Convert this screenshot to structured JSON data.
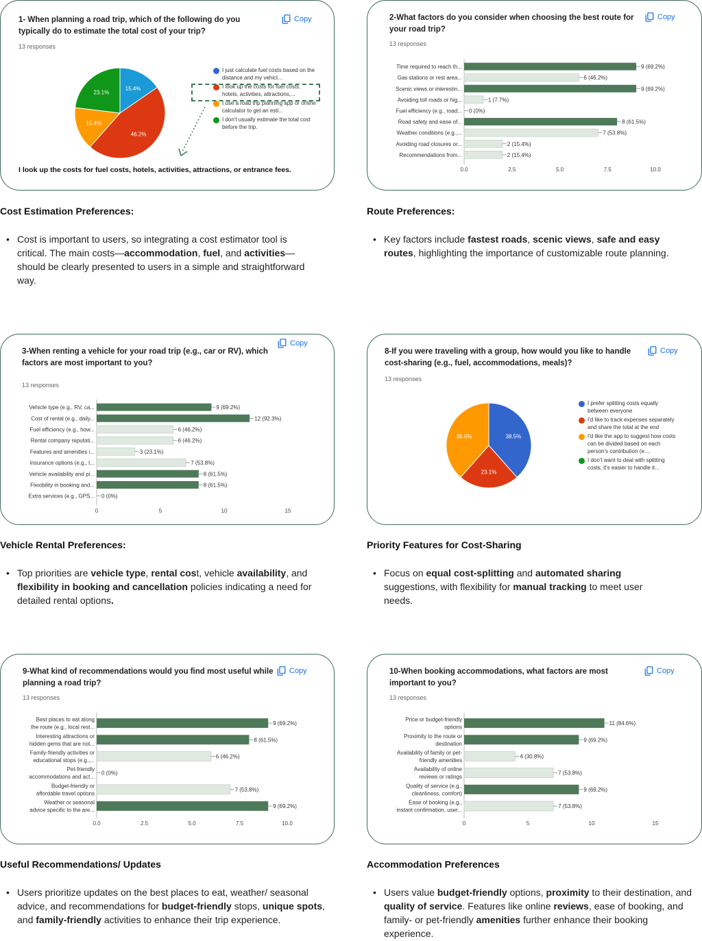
{
  "copy_label": "Copy",
  "responses": "13 responses",
  "colors": {
    "bar_dark": "#4f7a5a",
    "bar_light": "#dfe9e0",
    "border": "#3e6b5f"
  },
  "cards": {
    "c1": {
      "question_l1": "1- When planning a road trip, which of the following do you",
      "question_l2": "typically do to estimate the total cost of your trip?",
      "note": "I look up the costs for fuel costs, hotels, activities, attractions, or entrance fees."
    },
    "c2": {
      "question_l1": "2-What factors do you consider when choosing the best route for",
      "question_l2": "your road trip?"
    },
    "c3": {
      "question_l1": "3-When renting a vehicle for your road trip (e.g., car or RV), which",
      "question_l2": "factors are most important to you?"
    },
    "c4": {
      "question_l1": "8-If you were traveling with a group, how would you like to handle",
      "question_l2": "cost-sharing (e.g., fuel, accommodations, meals)?"
    },
    "c5": {
      "question_l1": "9-What kind of recommendations would you find most useful while",
      "question_l2": "planning a road trip?"
    },
    "c6": {
      "question_l1": "10-When booking accommodations, what factors are most",
      "question_l2": "important to you?"
    }
  },
  "sections": {
    "s1": {
      "heading": "Cost Estimation Preferences:"
    },
    "s2": {
      "heading": "Route Preferences:"
    },
    "s3": {
      "heading": "Vehicle Rental Preferences:"
    },
    "s4": {
      "heading": "Priority Features for Cost-Sharing"
    },
    "s5": {
      "heading": "Useful Recommendations/ Updates"
    },
    "s6": {
      "heading": "Accommodation Preferences"
    }
  },
  "bullets": {
    "s1": [
      {
        "t": "Cost is important to users, so integrating a cost estimator tool is critical. The main costs—"
      },
      {
        "t": "accommodation",
        "b": true
      },
      {
        "t": ", "
      },
      {
        "t": "fuel",
        "b": true
      },
      {
        "t": ", and "
      },
      {
        "t": "activities",
        "b": true
      },
      {
        "t": "—should be clearly presented to users in a simple and straightforward way."
      }
    ],
    "s2": [
      {
        "t": "Key factors include "
      },
      {
        "t": "fastest roads",
        "b": true
      },
      {
        "t": ", "
      },
      {
        "t": "scenic views",
        "b": true
      },
      {
        "t": ", "
      },
      {
        "t": "safe and easy routes",
        "b": true
      },
      {
        "t": ", highlighting the importance of customizable route planning."
      }
    ],
    "s3": [
      {
        "t": "Top priorities are "
      },
      {
        "t": "vehicle type",
        "b": true
      },
      {
        "t": ", "
      },
      {
        "t": "rental cos",
        "b": true
      },
      {
        "t": "t, vehicle "
      },
      {
        "t": "availability",
        "b": true
      },
      {
        "t": ", and "
      },
      {
        "t": "flexibility in booking and cancellation",
        "b": true
      },
      {
        "t": " policies indicating a need for detailed rental options"
      },
      {
        "t": ".",
        "b": true
      }
    ],
    "s4": [
      {
        "t": "Focus on "
      },
      {
        "t": "equal cost-splitting",
        "b": true
      },
      {
        "t": " and "
      },
      {
        "t": "automated sharing",
        "b": true
      },
      {
        "t": " suggestions, with flexibility for "
      },
      {
        "t": "manual tracking",
        "b": true
      },
      {
        "t": " to meet user needs."
      }
    ],
    "s5": [
      {
        "t": "Users prioritize updates on the best places to eat, weather/ seasonal advice, and recommendations for "
      },
      {
        "t": "budget-friendly",
        "b": true
      },
      {
        "t": " stops, "
      },
      {
        "t": "unique spots",
        "b": true
      },
      {
        "t": ", and "
      },
      {
        "t": "family-friendly",
        "b": true
      },
      {
        "t": " activities to enhance their trip experience."
      }
    ],
    "s6": [
      {
        "t": "Users value "
      },
      {
        "t": "budget-friendly",
        "b": true
      },
      {
        "t": " options, "
      },
      {
        "t": "proximity",
        "b": true
      },
      {
        "t": " to their destination, and "
      },
      {
        "t": "quality of service",
        "b": true
      },
      {
        "t": ". Features like online "
      },
      {
        "t": "reviews",
        "b": true
      },
      {
        "t": ", ease of booking, and family- or pet-friendly "
      },
      {
        "t": "amenities",
        "b": true
      },
      {
        "t": " further enhance their booking experience."
      }
    ]
  },
  "chart_data": [
    {
      "type": "pie",
      "id": "c1",
      "slices": [
        {
          "label": "I just calculate fuel costs based on the distance and my vehicl...",
          "value": 15.4,
          "color": "#1a9ad6"
        },
        {
          "label": "I look up the costs for fuel costs, hotels, activities, attractions,...",
          "value": 46.2,
          "color": "#dc3912"
        },
        {
          "label": "I use a road trip planning app or online calculator to get an esti...",
          "value": 15.4,
          "color": "#ff9900"
        },
        {
          "label": "I don't usually estimate the total cost before the trip.",
          "value": 23.1,
          "color": "#109618"
        }
      ],
      "legend_dots": [
        "#3366cc",
        "#dc3912",
        "#ff9900",
        "#109618"
      ],
      "pct_labels": [
        "15.4%",
        "46.2%",
        "15.4%",
        "23.1%"
      ]
    },
    {
      "type": "bar",
      "id": "c2",
      "categories": [
        "Time required to reach th...",
        "Gas stations or rest area...",
        "Scenic views or interestin...",
        "Avoiding toll roads or hig...",
        "Fuel efficiency (e.g., road...",
        "Road safety and ease of...",
        "Weather conditions (e.g.,...",
        "Avoiding road closures or...",
        "Recommendations from..."
      ],
      "values": [
        9,
        6,
        9,
        1,
        0,
        8,
        7,
        2,
        2
      ],
      "value_labels": [
        "9 (69.2%)",
        "6 (46.2%)",
        "9 (69.2%)",
        "1 (7.7%)",
        "0 (0%)",
        "8 (61.5%)",
        "7 (53.8%)",
        "2 (15.4%)",
        "2 (15.4%)"
      ],
      "xlim": [
        0,
        10
      ],
      "xticks": [
        "0.0",
        "2.5",
        "5.0",
        "7.5",
        "10.0"
      ]
    },
    {
      "type": "bar",
      "id": "c3",
      "categories": [
        "Vehicle type (e.g., RV, ca...",
        "Cost of rental (e.g., daily...",
        "Fuel efficiency (e.g., how...",
        "Rental company reputati...",
        "Features and amenities i...",
        "Insurance options (e.g., t...",
        "Vehicle availability and pi...",
        "Flexibility in booking and...",
        "Extra services (e.g., GPS..."
      ],
      "values": [
        9,
        12,
        6,
        6,
        3,
        7,
        8,
        8,
        0
      ],
      "value_labels": [
        "9 (69.2%)",
        "12 (92.3%)",
        "6 (46.2%)",
        "6 (46.2%)",
        "3 (23.1%)",
        "7 (53.8%)",
        "8 (61.5%)",
        "8 (61.5%)",
        "0 (0%)"
      ],
      "xlim": [
        0,
        15
      ],
      "xticks": [
        "0",
        "5",
        "10",
        "15"
      ]
    },
    {
      "type": "pie",
      "id": "c4",
      "slices": [
        {
          "label": "I prefer splitting costs equally between everyone",
          "value": 38.5,
          "color": "#3366cc"
        },
        {
          "label": "I'd like to track expenses separately and share the total at the end",
          "value": 23.1,
          "color": "#dc3912"
        },
        {
          "label": "I'd like the app to suggest how costs can be divided based on each person's contribution (e....",
          "value": 38.5,
          "color": "#ff9900"
        },
        {
          "label": "I don't want to deal with splitting costs; it's easier to handle it...",
          "value": 0,
          "color": "#109618"
        }
      ],
      "pct_labels": [
        "38.5%",
        "23.1%",
        "38.5%"
      ]
    },
    {
      "type": "bar",
      "id": "c5",
      "categories": [
        [
          "Best places to eat along",
          "the route (e.g., local rest..."
        ],
        [
          "Interesting attractions or",
          "hidden gems that are not..."
        ],
        [
          "Family-friendly activities or",
          "educational stops (e.g.,..."
        ],
        [
          "Pet-friendly",
          "accommodations and act..."
        ],
        [
          "Budget-friendly or",
          "affordable travel options"
        ],
        [
          "Weather or seasonal",
          "advice specific to the are..."
        ]
      ],
      "values": [
        9,
        8,
        6,
        0,
        7,
        9
      ],
      "value_labels": [
        "9 (69.2%)",
        "8 (61.5%)",
        "6 (46.2%)",
        "0 (0%)",
        "7 (53.8%)",
        "9 (69.2%)"
      ],
      "xlim": [
        0,
        10
      ],
      "xticks": [
        "0.0",
        "2.5",
        "5.0",
        "7.5",
        "10.0"
      ]
    },
    {
      "type": "bar",
      "id": "c6",
      "categories": [
        [
          "Price or budget-friendly",
          "options"
        ],
        [
          "Proximity to the route or",
          "destination"
        ],
        [
          "Availability of family or pet-",
          "friendly amenities"
        ],
        [
          "Availability of online",
          "reviews or ratings"
        ],
        [
          "Quality of service (e.g.,",
          "cleanliness, comfort)"
        ],
        [
          "Ease of booking (e.g.,",
          "instant confirmation, user..."
        ]
      ],
      "values": [
        11,
        9,
        4,
        7,
        9,
        7
      ],
      "value_labels": [
        "11 (84.6%)",
        "9 (69.2%)",
        "4 (30.8%)",
        "7 (53.8%)",
        "9 (69.2%)",
        "7 (53.8%)"
      ],
      "xlim": [
        0,
        15
      ],
      "xticks": [
        "0",
        "5",
        "10",
        "15"
      ]
    }
  ]
}
